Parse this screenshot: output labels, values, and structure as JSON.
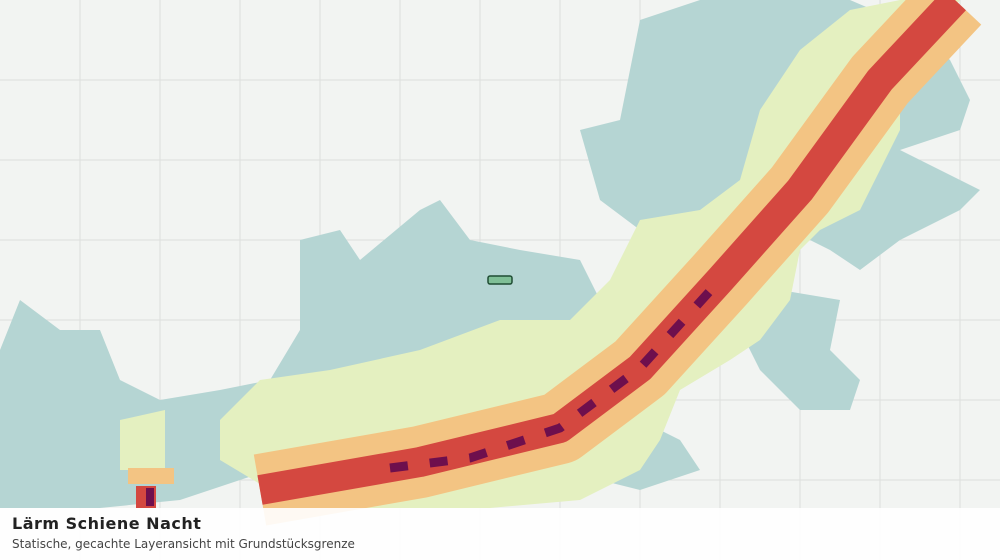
{
  "layer": {
    "title": "Lärm Schiene Nacht",
    "subtitle": "Statische, gecachte Layeransicht mit Grundstücksgrenze"
  }
}
